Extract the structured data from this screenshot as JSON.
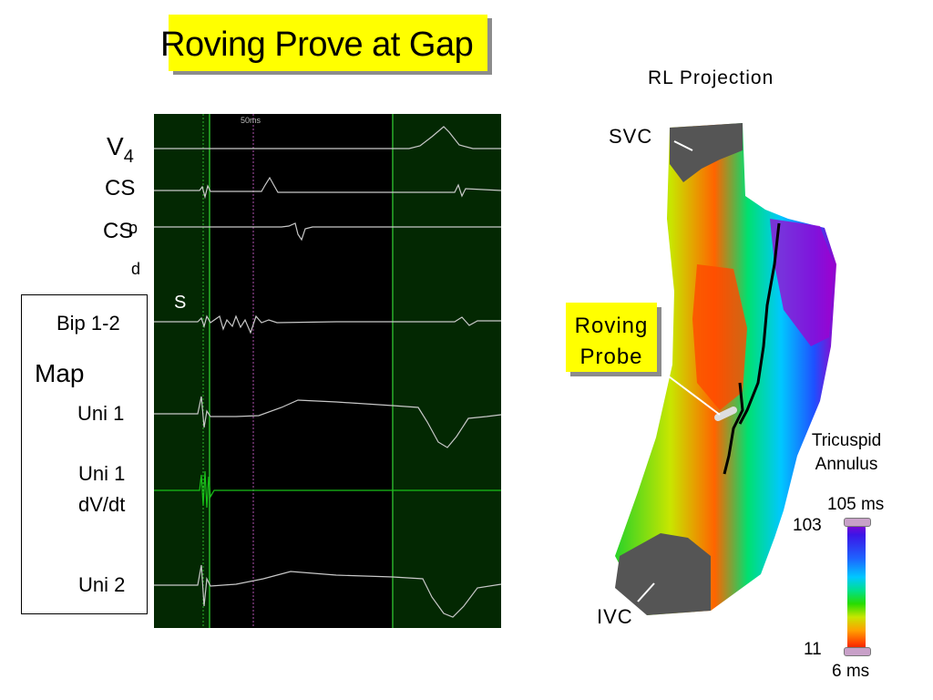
{
  "title": "Roving Prove at Gap",
  "traces": {
    "time_label": "50ms",
    "stim_label": "S",
    "labels": {
      "v4_main": "V",
      "v4_sub": "4",
      "cs1": "CS",
      "cs2": "CS",
      "cs2_frag1": "p",
      "cs2_frag2": "d",
      "bip": "Bip 1-2",
      "map": "Map",
      "uni1": "Uni 1",
      "uni1_dvdt_1": "Uni 1",
      "uni1_dvdt_2": "dV/dt",
      "uni2": "Uni 2"
    }
  },
  "map3d": {
    "projection": "RL Projection",
    "svc": "SVC",
    "ivc": "IVC",
    "probe_line1": "Roving",
    "probe_line2": "Probe",
    "tricuspid_line1": "Tricuspid",
    "tricuspid_line2": "Annulus",
    "scale_top": "105 ms",
    "scale_103": "103",
    "scale_11": "11",
    "scale_bottom": "6 ms"
  },
  "colors": {
    "highlight": "#ffff00",
    "trace_bg": "#032802",
    "trace_line": "#c8c8c8",
    "dvdt_line": "#18c018"
  }
}
